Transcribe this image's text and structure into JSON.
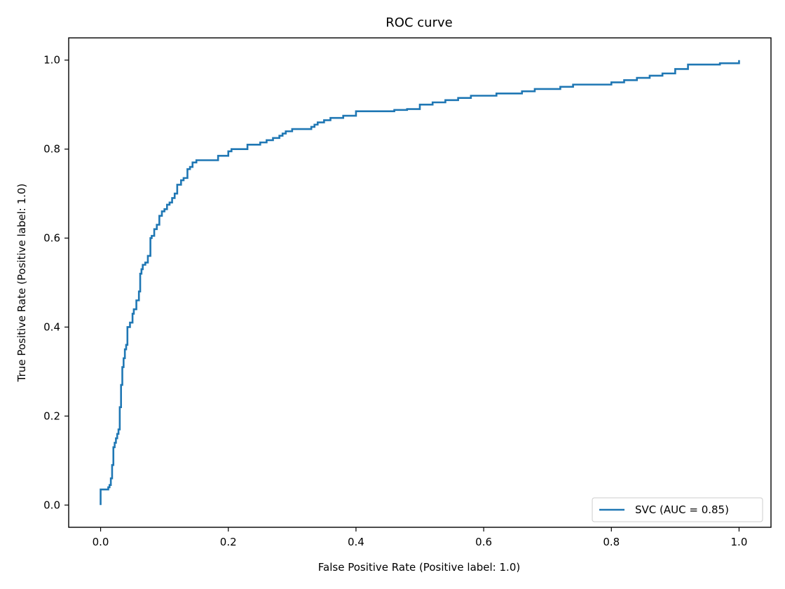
{
  "chart_data": {
    "type": "line",
    "title": "ROC curve",
    "xlabel": "False Positive Rate (Positive label: 1.0)",
    "ylabel": "True Positive Rate (Positive label: 1.0)",
    "xlim": [
      -0.05,
      1.05
    ],
    "ylim": [
      -0.05,
      1.05
    ],
    "xticks": [
      0.0,
      0.2,
      0.4,
      0.6,
      0.8,
      1.0
    ],
    "xtick_labels": [
      "0.0",
      "0.2",
      "0.4",
      "0.6",
      "0.8",
      "1.0"
    ],
    "yticks": [
      0.0,
      0.2,
      0.4,
      0.6,
      0.8,
      1.0
    ],
    "ytick_labels": [
      "0.0",
      "0.2",
      "0.4",
      "0.6",
      "0.8",
      "1.0"
    ],
    "grid": false,
    "legend_position": "lower-right",
    "series": [
      {
        "name": "SVC (AUC = 0.85)",
        "color": "#1f77b4",
        "step": true,
        "x": [
          0.0,
          0.0,
          0.008,
          0.012,
          0.014,
          0.016,
          0.018,
          0.02,
          0.022,
          0.024,
          0.026,
          0.028,
          0.03,
          0.032,
          0.034,
          0.036,
          0.038,
          0.04,
          0.042,
          0.046,
          0.05,
          0.052,
          0.056,
          0.06,
          0.062,
          0.064,
          0.066,
          0.07,
          0.074,
          0.078,
          0.08,
          0.084,
          0.088,
          0.092,
          0.096,
          0.1,
          0.104,
          0.108,
          0.112,
          0.116,
          0.12,
          0.126,
          0.13,
          0.136,
          0.14,
          0.144,
          0.15,
          0.16,
          0.184,
          0.2,
          0.205,
          0.21,
          0.23,
          0.25,
          0.26,
          0.27,
          0.28,
          0.285,
          0.29,
          0.3,
          0.33,
          0.335,
          0.34,
          0.35,
          0.36,
          0.38,
          0.4,
          0.44,
          0.46,
          0.48,
          0.5,
          0.52,
          0.54,
          0.56,
          0.58,
          0.62,
          0.64,
          0.66,
          0.68,
          0.72,
          0.74,
          0.76,
          0.8,
          0.82,
          0.84,
          0.86,
          0.88,
          0.9,
          0.92,
          0.95,
          0.97,
          1.0
        ],
        "y": [
          0.0,
          0.035,
          0.035,
          0.04,
          0.045,
          0.06,
          0.09,
          0.13,
          0.14,
          0.15,
          0.16,
          0.17,
          0.22,
          0.27,
          0.31,
          0.33,
          0.35,
          0.36,
          0.4,
          0.41,
          0.43,
          0.44,
          0.46,
          0.48,
          0.52,
          0.53,
          0.54,
          0.545,
          0.56,
          0.6,
          0.605,
          0.62,
          0.63,
          0.65,
          0.66,
          0.665,
          0.675,
          0.68,
          0.69,
          0.7,
          0.72,
          0.73,
          0.735,
          0.755,
          0.76,
          0.77,
          0.775,
          0.775,
          0.785,
          0.795,
          0.8,
          0.8,
          0.81,
          0.815,
          0.82,
          0.825,
          0.83,
          0.835,
          0.84,
          0.845,
          0.85,
          0.855,
          0.86,
          0.865,
          0.87,
          0.875,
          0.885,
          0.885,
          0.888,
          0.89,
          0.9,
          0.905,
          0.91,
          0.915,
          0.92,
          0.925,
          0.925,
          0.93,
          0.935,
          0.94,
          0.945,
          0.945,
          0.95,
          0.955,
          0.96,
          0.965,
          0.97,
          0.98,
          0.99,
          0.99,
          0.993,
          1.0
        ]
      }
    ]
  }
}
